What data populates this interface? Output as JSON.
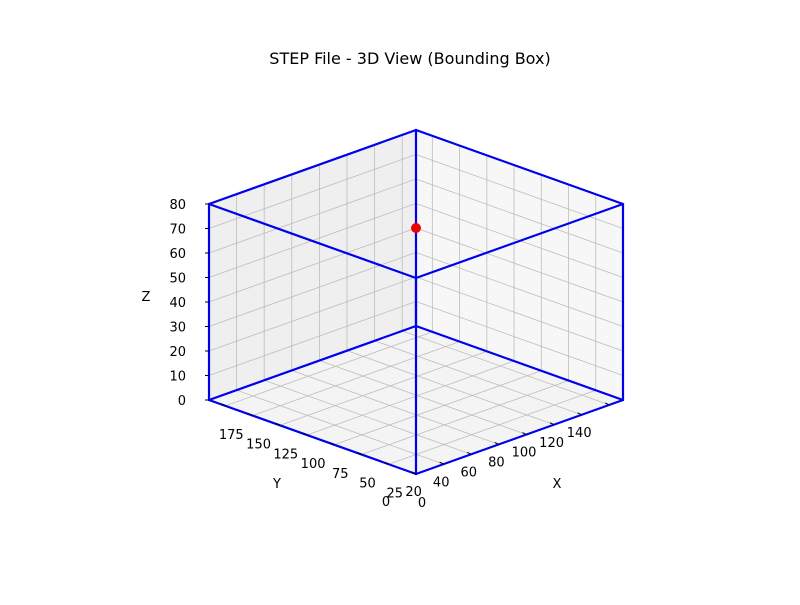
{
  "chart_data": {
    "type": "3d-bounding-box",
    "title": "STEP File - 3D View (Bounding Box)",
    "xlabel": "X",
    "ylabel": "Y",
    "zlabel": "Z",
    "xlim": [
      0,
      190
    ],
    "ylim": [
      0,
      150
    ],
    "zlim": [
      0,
      80
    ],
    "x_ticks": [
      0,
      25,
      50,
      75,
      100,
      125,
      150,
      175
    ],
    "y_ticks": [
      0,
      20,
      40,
      60,
      80,
      100,
      120,
      140
    ],
    "z_ticks": [
      0,
      10,
      20,
      30,
      40,
      50,
      60,
      70,
      80
    ],
    "grid": true,
    "box": {
      "min": [
        0,
        0,
        0
      ],
      "max": [
        190,
        150,
        80
      ],
      "color": "#0000ee"
    },
    "points": [
      {
        "x": 190,
        "y": 150,
        "z": 40,
        "color": "#ee0000"
      }
    ]
  }
}
